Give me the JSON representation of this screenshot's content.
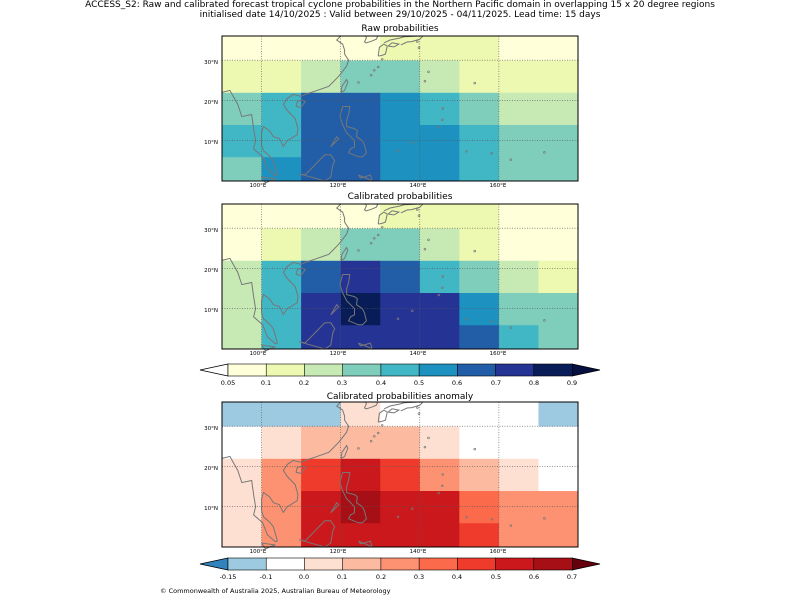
{
  "header": {
    "line1": "ACCESS_S2: Raw and calibrated forecast tropical cyclone probabilities in the Northern Pacific domain in overlapping 15 x 20 degree regions",
    "line2": "initialised date 14/10/2025 :  Valid between 29/10/2025 - 04/11/2025. Lead time: 15 days"
  },
  "footer": "© Commonwealth of Australia 2025, Australian Bureau of Meteorology",
  "chart_data": [
    {
      "type": "heatmap",
      "title": "Raw probabilities",
      "x_ticks": [
        "100°E",
        "120°E",
        "140°E",
        "160°E"
      ],
      "y_ticks": [
        "10°N",
        "20°N",
        "30°N"
      ],
      "xlim": [
        90,
        180
      ],
      "ylim": [
        0,
        36
      ],
      "grid_lon_edges": [
        90,
        100,
        110,
        120,
        130,
        140,
        150,
        160,
        170,
        180
      ],
      "grid_lat_edges": [
        0,
        6,
        14,
        22,
        30,
        36
      ],
      "values_rows_south_to_north": [
        [
          0.3,
          0.5,
          0.6,
          0.6,
          0.5,
          0.5,
          0.4,
          0.3,
          0.3
        ],
        [
          0.4,
          0.4,
          0.6,
          0.6,
          0.5,
          0.5,
          0.4,
          0.3,
          0.3
        ],
        [
          0.3,
          0.4,
          0.6,
          0.6,
          0.5,
          0.4,
          0.3,
          0.2,
          0.2
        ],
        [
          0.1,
          0.1,
          0.2,
          0.3,
          0.3,
          0.2,
          0.1,
          0.1,
          0.1
        ],
        [
          0.05,
          0.05,
          0.05,
          0.05,
          0.1,
          0.1,
          0.1,
          0.05,
          0.05
        ]
      ]
    },
    {
      "type": "heatmap",
      "title": "Calibrated probabilities",
      "x_ticks": [
        "100°E",
        "120°E",
        "140°E",
        "160°E"
      ],
      "y_ticks": [
        "10°N",
        "20°N",
        "30°N"
      ],
      "xlim": [
        90,
        180
      ],
      "ylim": [
        0,
        36
      ],
      "grid_lon_edges": [
        90,
        100,
        110,
        120,
        130,
        140,
        150,
        160,
        170,
        180
      ],
      "grid_lat_edges": [
        0,
        6,
        14,
        22,
        30,
        36
      ],
      "values_rows_south_to_north": [
        [
          0.2,
          0.4,
          0.7,
          0.7,
          0.7,
          0.7,
          0.6,
          0.4,
          0.3
        ],
        [
          0.2,
          0.4,
          0.7,
          0.8,
          0.7,
          0.7,
          0.5,
          0.3,
          0.3
        ],
        [
          0.2,
          0.4,
          0.6,
          0.7,
          0.6,
          0.4,
          0.3,
          0.2,
          0.1
        ],
        [
          0.05,
          0.1,
          0.2,
          0.3,
          0.3,
          0.2,
          0.1,
          0.05,
          0.05
        ],
        [
          0.05,
          0.05,
          0.05,
          0.05,
          0.1,
          0.1,
          0.1,
          0.05,
          0.05
        ]
      ],
      "colorbar": {
        "ticks": [
          "0.05",
          "0.1",
          "0.2",
          "0.3",
          "0.4",
          "0.5",
          "0.6",
          "0.7",
          "0.8",
          "0.9"
        ],
        "colors": [
          "#ffffd9",
          "#edf8b1",
          "#c7e9b4",
          "#7fcdbb",
          "#41b6c4",
          "#1d91c0",
          "#225ea8",
          "#253494",
          "#081d58"
        ],
        "under_color": "#ffffff",
        "over_color": "#051040"
      }
    },
    {
      "type": "heatmap",
      "title": "Calibrated probabilities anomaly",
      "x_ticks": [
        "100°E",
        "120°E",
        "140°E",
        "160°E"
      ],
      "y_ticks": [
        "10°N",
        "20°N",
        "30°N"
      ],
      "xlim": [
        90,
        180
      ],
      "ylim": [
        0,
        36
      ],
      "grid_lon_edges": [
        90,
        100,
        110,
        120,
        130,
        140,
        150,
        160,
        170,
        180
      ],
      "grid_lat_edges": [
        0,
        6,
        14,
        22,
        30,
        36
      ],
      "values_rows_south_to_north": [
        [
          0.0,
          0.2,
          0.5,
          0.5,
          0.5,
          0.5,
          0.4,
          0.2,
          0.2
        ],
        [
          0.0,
          0.2,
          0.5,
          0.6,
          0.5,
          0.5,
          0.3,
          0.2,
          0.2
        ],
        [
          0.0,
          0.2,
          0.4,
          0.5,
          0.4,
          0.2,
          0.1,
          0.0,
          -0.1
        ],
        [
          -0.1,
          0.0,
          0.1,
          0.1,
          0.1,
          0.0,
          -0.1,
          -0.1,
          -0.1
        ],
        [
          -0.15,
          -0.15,
          -0.15,
          0.0,
          -0.1,
          -0.1,
          -0.1,
          -0.1,
          -0.15
        ]
      ],
      "colorbar": {
        "ticks": [
          "-0.15",
          "-0.1",
          "0.0",
          "0.1",
          "0.2",
          "0.3",
          "0.4",
          "0.5",
          "0.6",
          "0.7"
        ],
        "colors": [
          "#9ecae1",
          "#ffffff",
          "#fee0d2",
          "#fcbba1",
          "#fc9272",
          "#fb6a4a",
          "#ef3b2c",
          "#cb181d",
          "#a50f15"
        ],
        "under_color": "#3182bd",
        "over_color": "#67000d"
      }
    }
  ]
}
